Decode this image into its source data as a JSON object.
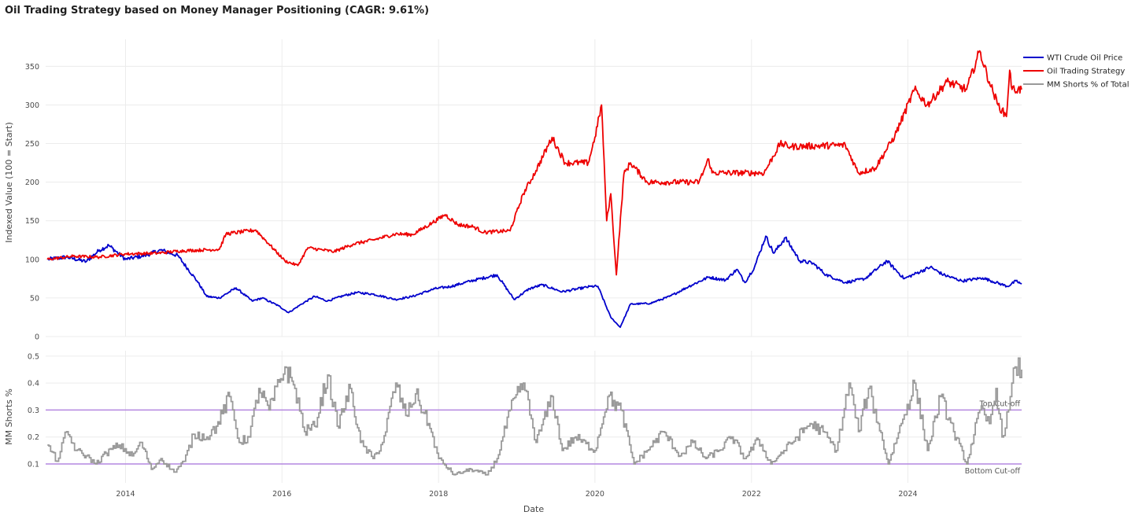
{
  "chart_data": [
    {
      "type": "line",
      "title": "Oil Trading Strategy based on Money Manager Positioning (CAGR: 9.61%)",
      "ylabel": "Indexed Value (100 = Start)",
      "xlim": [
        "2012-12-24",
        "2025-06-15"
      ],
      "ylim": [
        0,
        385
      ],
      "yticks": [
        0,
        50,
        100,
        150,
        200,
        250,
        300,
        350
      ],
      "grid": true,
      "legend": "top-right",
      "series": [
        {
          "name": "WTI Crude Oil Price",
          "color": "#0000cc",
          "points": [
            [
              "2013-01-01",
              100
            ],
            [
              "2013-04-01",
              103
            ],
            [
              "2013-07-01",
              97
            ],
            [
              "2013-09-01",
              112
            ],
            [
              "2013-10-15",
              118
            ],
            [
              "2014-01-01",
              100
            ],
            [
              "2014-04-01",
              105
            ],
            [
              "2014-06-15",
              112
            ],
            [
              "2014-09-01",
              105
            ],
            [
              "2014-12-01",
              72
            ],
            [
              "2015-01-15",
              52
            ],
            [
              "2015-03-15",
              50
            ],
            [
              "2015-06-01",
              63
            ],
            [
              "2015-08-15",
              46
            ],
            [
              "2015-10-01",
              50
            ],
            [
              "2015-12-15",
              40
            ],
            [
              "2016-02-01",
              31
            ],
            [
              "2016-04-01",
              42
            ],
            [
              "2016-06-01",
              52
            ],
            [
              "2016-08-01",
              46
            ],
            [
              "2016-10-15",
              53
            ],
            [
              "2016-12-15",
              57
            ],
            [
              "2017-03-01",
              55
            ],
            [
              "2017-06-15",
              48
            ],
            [
              "2017-09-01",
              52
            ],
            [
              "2017-12-15",
              62
            ],
            [
              "2018-03-01",
              65
            ],
            [
              "2018-06-01",
              72
            ],
            [
              "2018-10-01",
              80
            ],
            [
              "2018-12-20",
              48
            ],
            [
              "2019-03-01",
              62
            ],
            [
              "2019-05-01",
              67
            ],
            [
              "2019-08-01",
              58
            ],
            [
              "2019-12-15",
              65
            ],
            [
              "2020-01-15",
              65
            ],
            [
              "2020-03-15",
              25
            ],
            [
              "2020-04-28",
              12
            ],
            [
              "2020-06-15",
              42
            ],
            [
              "2020-09-15",
              43
            ],
            [
              "2020-12-15",
              52
            ],
            [
              "2021-03-15",
              65
            ],
            [
              "2021-06-15",
              77
            ],
            [
              "2021-09-01",
              73
            ],
            [
              "2021-10-25",
              87
            ],
            [
              "2021-12-01",
              70
            ],
            [
              "2022-01-15",
              90
            ],
            [
              "2022-03-08",
              130
            ],
            [
              "2022-04-15",
              108
            ],
            [
              "2022-06-08",
              128
            ],
            [
              "2022-08-15",
              98
            ],
            [
              "2022-10-15",
              95
            ],
            [
              "2022-12-15",
              80
            ],
            [
              "2023-03-15",
              70
            ],
            [
              "2023-06-15",
              75
            ],
            [
              "2023-09-25",
              98
            ],
            [
              "2023-12-15",
              75
            ],
            [
              "2024-04-15",
              90
            ],
            [
              "2024-06-15",
              80
            ],
            [
              "2024-09-10",
              72
            ],
            [
              "2024-12-15",
              76
            ],
            [
              "2025-04-10",
              65
            ],
            [
              "2025-05-20",
              72
            ],
            [
              "2025-06-15",
              68
            ]
          ]
        },
        {
          "name": "Oil Trading Strategy",
          "color": "#ee0000",
          "points": [
            [
              "2013-01-01",
              100
            ],
            [
              "2013-05-01",
              104
            ],
            [
              "2013-09-01",
              103
            ],
            [
              "2014-01-01",
              107
            ],
            [
              "2014-06-01",
              108
            ],
            [
              "2014-09-15",
              111
            ],
            [
              "2015-03-15",
              113
            ],
            [
              "2015-04-15",
              133
            ],
            [
              "2015-09-01",
              138
            ],
            [
              "2015-11-01",
              120
            ],
            [
              "2016-01-15",
              98
            ],
            [
              "2016-03-15",
              92
            ],
            [
              "2016-05-01",
              115
            ],
            [
              "2016-09-01",
              110
            ],
            [
              "2016-12-01",
              120
            ],
            [
              "2017-03-01",
              125
            ],
            [
              "2017-06-15",
              133
            ],
            [
              "2017-09-01",
              132
            ],
            [
              "2017-12-01",
              147
            ],
            [
              "2018-02-01",
              158
            ],
            [
              "2018-04-01",
              145
            ],
            [
              "2018-06-15",
              142
            ],
            [
              "2018-08-01",
              135
            ],
            [
              "2018-12-01",
              137
            ],
            [
              "2019-02-01",
              185
            ],
            [
              "2019-04-01",
              215
            ],
            [
              "2019-06-15",
              258
            ],
            [
              "2019-08-15",
              225
            ],
            [
              "2019-12-01",
              225
            ],
            [
              "2020-01-01",
              258
            ],
            [
              "2020-02-01",
              300
            ],
            [
              "2020-02-25",
              150
            ],
            [
              "2020-03-15",
              185
            ],
            [
              "2020-04-10",
              80
            ],
            [
              "2020-05-15",
              210
            ],
            [
              "2020-06-15",
              225
            ],
            [
              "2020-09-01",
              200
            ],
            [
              "2021-05-01",
              200
            ],
            [
              "2021-06-15",
              230
            ],
            [
              "2021-07-01",
              212
            ],
            [
              "2022-03-01",
              212
            ],
            [
              "2022-05-15",
              250
            ],
            [
              "2022-07-01",
              246
            ],
            [
              "2023-03-15",
              248
            ],
            [
              "2023-05-15",
              212
            ],
            [
              "2023-08-01",
              218
            ],
            [
              "2023-11-01",
              260
            ],
            [
              "2024-02-01",
              320
            ],
            [
              "2024-04-01",
              300
            ],
            [
              "2024-07-01",
              330
            ],
            [
              "2024-10-01",
              320
            ],
            [
              "2024-12-01",
              370
            ],
            [
              "2025-01-15",
              330
            ],
            [
              "2025-02-25",
              300
            ],
            [
              "2025-04-05",
              285
            ],
            [
              "2025-04-20",
              345
            ],
            [
              "2025-05-01",
              320
            ],
            [
              "2025-06-15",
              320
            ]
          ]
        }
      ]
    },
    {
      "type": "line",
      "xlabel": "Date",
      "ylabel": "MM Shorts %",
      "xlim": [
        "2012-12-24",
        "2025-06-15"
      ],
      "ylim": [
        0.03,
        0.52
      ],
      "yticks": [
        0.1,
        0.2,
        0.3,
        0.4,
        0.5
      ],
      "xticks": [
        "2014",
        "2016",
        "2018",
        "2020",
        "2022",
        "2024"
      ],
      "grid": true,
      "series": [
        {
          "name": "MM Shorts % of Total",
          "color": "#9a9a9a",
          "points": [
            [
              "2013-01-01",
              0.17
            ],
            [
              "2013-02-15",
              0.11
            ],
            [
              "2013-04-01",
              0.22
            ],
            [
              "2013-05-15",
              0.15
            ],
            [
              "2013-07-01",
              0.13
            ],
            [
              "2013-08-15",
              0.1
            ],
            [
              "2013-10-01",
              0.14
            ],
            [
              "2013-12-01",
              0.17
            ],
            [
              "2014-02-01",
              0.13
            ],
            [
              "2014-03-15",
              0.18
            ],
            [
              "2014-05-01",
              0.08
            ],
            [
              "2014-06-15",
              0.12
            ],
            [
              "2014-08-15",
              0.07
            ],
            [
              "2014-10-01",
              0.11
            ],
            [
              "2014-11-15",
              0.21
            ],
            [
              "2015-01-15",
              0.2
            ],
            [
              "2015-03-01",
              0.24
            ],
            [
              "2015-05-01",
              0.35
            ],
            [
              "2015-06-15",
              0.18
            ],
            [
              "2015-08-01",
              0.2
            ],
            [
              "2015-09-15",
              0.38
            ],
            [
              "2015-11-01",
              0.3
            ],
            [
              "2016-01-15",
              0.46
            ],
            [
              "2016-03-01",
              0.38
            ],
            [
              "2016-04-15",
              0.22
            ],
            [
              "2016-06-01",
              0.24
            ],
            [
              "2016-08-01",
              0.43
            ],
            [
              "2016-09-15",
              0.24
            ],
            [
              "2016-11-15",
              0.38
            ],
            [
              "2017-01-01",
              0.18
            ],
            [
              "2017-03-01",
              0.12
            ],
            [
              "2017-04-15",
              0.18
            ],
            [
              "2017-06-15",
              0.4
            ],
            [
              "2017-08-01",
              0.28
            ],
            [
              "2017-09-15",
              0.36
            ],
            [
              "2017-11-15",
              0.25
            ],
            [
              "2018-01-01",
              0.12
            ],
            [
              "2018-03-15",
              0.06
            ],
            [
              "2018-06-01",
              0.08
            ],
            [
              "2018-08-15",
              0.06
            ],
            [
              "2018-10-01",
              0.12
            ],
            [
              "2018-12-01",
              0.3
            ],
            [
              "2019-02-01",
              0.4
            ],
            [
              "2019-04-01",
              0.18
            ],
            [
              "2019-06-15",
              0.35
            ],
            [
              "2019-08-01",
              0.15
            ],
            [
              "2019-10-01",
              0.2
            ],
            [
              "2020-01-01",
              0.15
            ],
            [
              "2020-03-01",
              0.35
            ],
            [
              "2020-05-01",
              0.3
            ],
            [
              "2020-07-01",
              0.1
            ],
            [
              "2020-09-01",
              0.15
            ],
            [
              "2020-11-15",
              0.22
            ],
            [
              "2021-02-01",
              0.13
            ],
            [
              "2021-04-01",
              0.18
            ],
            [
              "2021-06-01",
              0.12
            ],
            [
              "2021-08-01",
              0.15
            ],
            [
              "2021-10-01",
              0.2
            ],
            [
              "2021-12-01",
              0.12
            ],
            [
              "2022-02-01",
              0.19
            ],
            [
              "2022-04-01",
              0.1
            ],
            [
              "2022-06-01",
              0.15
            ],
            [
              "2022-08-01",
              0.2
            ],
            [
              "2022-10-01",
              0.25
            ],
            [
              "2022-12-01",
              0.22
            ],
            [
              "2023-02-01",
              0.15
            ],
            [
              "2023-04-01",
              0.4
            ],
            [
              "2023-05-15",
              0.22
            ],
            [
              "2023-07-01",
              0.38
            ],
            [
              "2023-08-15",
              0.25
            ],
            [
              "2023-10-01",
              0.1
            ],
            [
              "2023-12-01",
              0.25
            ],
            [
              "2024-02-01",
              0.4
            ],
            [
              "2024-04-01",
              0.15
            ],
            [
              "2024-06-01",
              0.35
            ],
            [
              "2024-08-01",
              0.22
            ],
            [
              "2024-10-01",
              0.1
            ],
            [
              "2024-12-01",
              0.3
            ],
            [
              "2025-01-15",
              0.25
            ],
            [
              "2025-02-15",
              0.38
            ],
            [
              "2025-03-15",
              0.2
            ],
            [
              "2025-04-15",
              0.3
            ],
            [
              "2025-05-15",
              0.46
            ],
            [
              "2025-06-15",
              0.45
            ]
          ]
        }
      ],
      "reference_lines": [
        {
          "y": 0.3,
          "label": "Top Cut-off",
          "color": "#b487e0"
        },
        {
          "y": 0.1,
          "label": "Bottom Cut-off",
          "color": "#b487e0"
        }
      ]
    }
  ]
}
